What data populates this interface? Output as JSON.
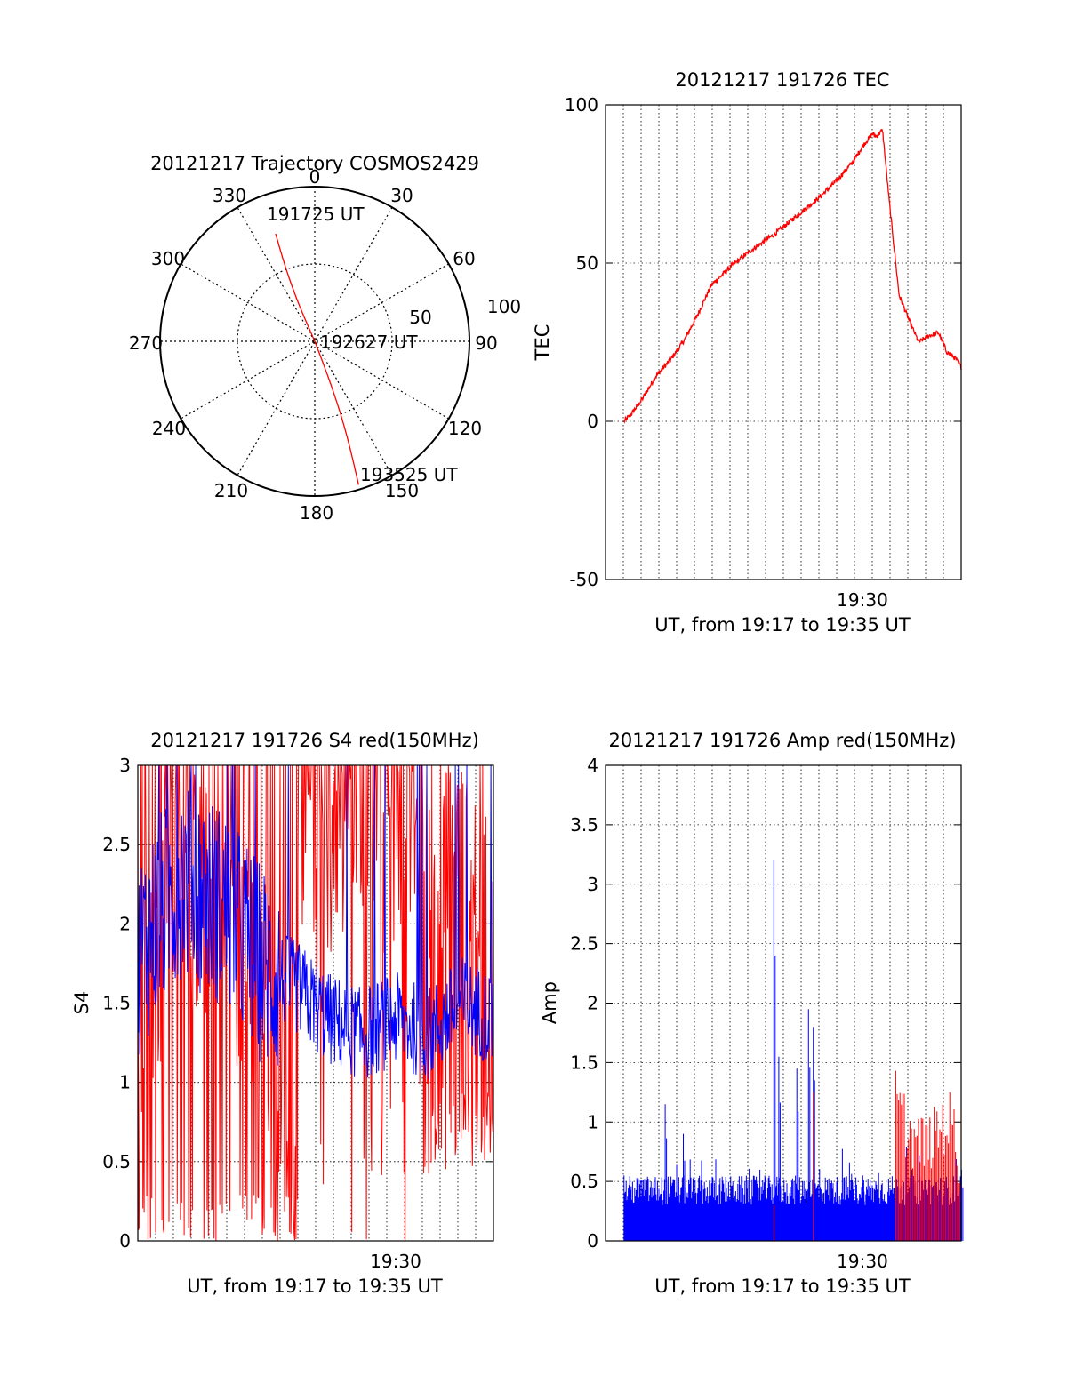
{
  "figure": {
    "polar": {
      "title": "20121217 Trajectory COSMOS2429",
      "azimuth_labels": [
        "0",
        "30",
        "60",
        "90",
        "120",
        "150",
        "180",
        "210",
        "240",
        "270",
        "300",
        "330"
      ],
      "elevation_labels": [
        "50",
        "100"
      ],
      "times": {
        "start": "191725 UT",
        "mid": "192627 UT",
        "end": "193525 UT"
      }
    },
    "tec": {
      "title": "20121217 191726 TEC",
      "ylabel": "TEC",
      "xtick": "19:30",
      "xlabel": "UT, from 19:17 to 19:35 UT"
    },
    "s4": {
      "title": "20121217 191726 S4 red(150MHz)",
      "ylabel": "S4",
      "xtick": "19:30",
      "xlabel": "UT, from 19:17 to 19:35 UT"
    },
    "amp": {
      "title": "20121217 191726 Amp red(150MHz)",
      "ylabel": "Amp",
      "xtick": "19:30",
      "xlabel": "UT, from 19:17 to 19:35 UT"
    }
  },
  "colors": {
    "red": "#ff0000",
    "blue": "#0000ff",
    "axis": "#000000"
  },
  "chart_data": [
    {
      "type": "scatter",
      "title": "20121217 Trajectory COSMOS2429",
      "coordinate_system": "polar (azimuth deg, zenith-distance radius)",
      "series": [
        {
          "color": "red",
          "points": [
            {
              "az": 340,
              "r": 74,
              "label": "191725 UT"
            },
            {
              "az": 0,
              "r": 0,
              "label": "192627 UT"
            },
            {
              "az": 163,
              "r": 97,
              "label": "193525 UT"
            }
          ]
        }
      ],
      "rlim": [
        0,
        100
      ]
    },
    {
      "type": "line",
      "title": "20121217 191726 TEC",
      "xlabel": "UT, from 19:17 to 19:35 UT",
      "ylabel": "TEC",
      "xlim": [
        19.283,
        19.583
      ],
      "ylim": [
        -50,
        100
      ],
      "yticks": [
        -50,
        0,
        50,
        100
      ],
      "xticks": [
        {
          "x": 19.5,
          "label": "19:30"
        }
      ],
      "grid": true,
      "series": [
        {
          "color": "red",
          "x": [
            19.2986,
            19.3042,
            19.3139,
            19.325,
            19.3389,
            19.35,
            19.3611,
            19.3722,
            19.3889,
            19.4056,
            19.425,
            19.4444,
            19.4611,
            19.4778,
            19.4917,
            19.5,
            19.5083,
            19.5111,
            19.5167,
            19.5222,
            19.5306,
            19.5389,
            19.5472,
            19.5556,
            19.5639,
            19.5708,
            19.5778,
            19.5833
          ],
          "values": [
            0,
            2,
            7,
            14,
            20,
            26,
            34,
            43,
            49,
            54,
            59,
            65,
            70,
            76,
            82,
            87,
            91,
            90,
            92,
            70,
            40,
            32,
            25,
            27,
            28,
            22,
            20,
            17
          ]
        }
      ]
    },
    {
      "type": "line",
      "title": "20121217 191726 S4 red(150MHz)",
      "xlabel": "UT, from 19:17 to 19:35 UT",
      "ylabel": "S4",
      "xlim": [
        19.283,
        19.583
      ],
      "ylim": [
        0,
        3
      ],
      "yticks": [
        0,
        0.5,
        1,
        1.5,
        2,
        2.5,
        3
      ],
      "xticks": [
        {
          "x": 19.5,
          "label": "19:30"
        }
      ],
      "grid": true,
      "series": [
        {
          "color": "red",
          "x": [
            19.283,
            19.319,
            19.356,
            19.392,
            19.417,
            19.431,
            19.444,
            19.472,
            19.5,
            19.528,
            19.542,
            19.556,
            19.583
          ],
          "values": [
            1.5,
            2.3,
            2.0,
            1.5,
            0.8,
            0.3,
            0.5,
            0,
            0.1,
            0.5,
            2.5,
            1.5,
            2.2
          ]
        },
        {
          "color": "blue",
          "x": [
            19.283,
            19.319,
            19.356,
            19.392,
            19.417,
            19.444,
            19.472,
            19.5,
            19.528,
            19.556,
            19.583
          ],
          "values": [
            1.8,
            2.3,
            2.1,
            1.7,
            1.6,
            1.4,
            1.3,
            1.4,
            1.3,
            1.5,
            1.4
          ]
        }
      ]
    },
    {
      "type": "bar",
      "title": "20121217 191726 Amp red(150MHz)",
      "xlabel": "UT, from 19:17 to 19:35 UT",
      "ylabel": "Amp",
      "xlim": [
        19.283,
        19.583
      ],
      "ylim": [
        0,
        4
      ],
      "yticks": [
        0,
        0.5,
        1,
        1.5,
        2,
        2.5,
        3,
        3.5,
        4
      ],
      "xticks": [
        {
          "x": 19.5,
          "label": "19:30"
        }
      ],
      "grid": true,
      "series": [
        {
          "color": "blue",
          "x": [
            19.2986,
            19.3333,
            19.3486,
            19.425,
            19.4292,
            19.4444,
            19.4542,
            19.4583,
            19.5,
            19.5417,
            19.5833
          ],
          "values": [
            0.55,
            1.15,
            0.9,
            3.2,
            1.55,
            1.45,
            1.95,
            1.8,
            0.55,
            0.6,
            0.6
          ]
        },
        {
          "color": "red",
          "x": [
            19.425,
            19.4583,
            19.5278,
            19.5347,
            19.5417,
            19.5556,
            19.5694,
            19.5764,
            19.5833
          ],
          "values": [
            0.3,
            1.25,
            1.5,
            1.3,
            1.1,
            1.05,
            1.3,
            1.25,
            0.6
          ]
        }
      ]
    }
  ]
}
